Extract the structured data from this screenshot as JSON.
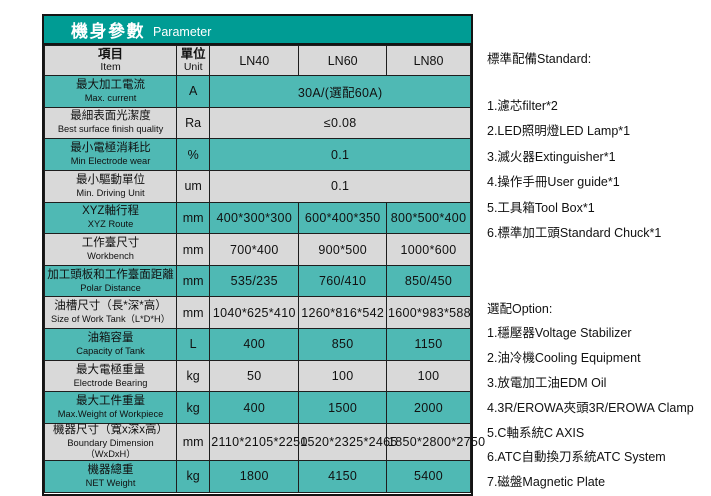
{
  "colors": {
    "title_bar": "#009C94",
    "row_teal": "#4FB9B4",
    "row_gray": "#D9D9D9",
    "border": "#1E1E1E",
    "title_text": "#FFFFFF",
    "body_text": "#111111",
    "page_background": "#FFFFFF"
  },
  "table": {
    "title_zh": "機身參數",
    "title_en": "Parameter",
    "header": {
      "item_zh": "項目",
      "item_en": "Item",
      "unit_zh": "單位",
      "unit_en": "Unit",
      "models": [
        "LN40",
        "LN60",
        "LN80"
      ]
    },
    "rows": [
      {
        "zh": "最大加工電流",
        "en": "Max. current",
        "unit": "A",
        "span": "30A/(選配60A)"
      },
      {
        "zh": "最細表面光潔度",
        "en": "Best surface finish quality",
        "unit": "Ra",
        "span": "≤0.08"
      },
      {
        "zh": "最小電極消耗比",
        "en": "Min Electrode wear",
        "unit": "%",
        "span": "0.1"
      },
      {
        "zh": "最小驅動單位",
        "en": "Min. Driving Unit",
        "unit": "um",
        "span": "0.1"
      },
      {
        "zh": "XYZ軸行程",
        "en": "XYZ Route",
        "unit": "mm",
        "v": [
          "400*300*300",
          "600*400*350",
          "800*500*400"
        ]
      },
      {
        "zh": "工作臺尺寸",
        "en": "Workbench",
        "unit": "mm",
        "v": [
          "700*400",
          "900*500",
          "1000*600"
        ]
      },
      {
        "zh": "加工頭板和工作臺面距離",
        "en": "Polar Distance",
        "unit": "mm",
        "v": [
          "535/235",
          "760/410",
          "850/450"
        ]
      },
      {
        "zh": "油槽尺寸（長*深*高）",
        "en": "Size of Work Tank（L*D*H）",
        "unit": "mm",
        "v": [
          "1040*625*410",
          "1260*816*542",
          "1600*983*588"
        ]
      },
      {
        "zh": "油箱容量",
        "en": "Capacity of Tank",
        "unit": "L",
        "v": [
          "400",
          "850",
          "1150"
        ]
      },
      {
        "zh": "最大電極重量",
        "en": "Electrode Bearing",
        "unit": "kg",
        "v": [
          "50",
          "100",
          "100"
        ]
      },
      {
        "zh": "最大工件重量",
        "en": "Max.Weight of Workpiece",
        "unit": "kg",
        "v": [
          "400",
          "1500",
          "2000"
        ]
      },
      {
        "zh": "機器尺寸（寬x深x高）",
        "en": "Boundary Dimension（WxDxH）",
        "unit": "mm",
        "v": [
          "2110*2105*2250",
          "1520*2325*2465",
          "1850*2800*2750"
        ]
      },
      {
        "zh": "機器總重",
        "en": "NET Weight",
        "unit": "kg",
        "v": [
          "1800",
          "4150",
          "5400"
        ]
      }
    ]
  },
  "standard": {
    "heading": "標準配備Standard:",
    "items": [
      "1.濾芯filter*2",
      "2.LED照明燈LED Lamp*1",
      "3.滅火器Extinguisher*1",
      "4.操作手冊User guide*1",
      "5.工具箱Tool Box*1",
      "6.標準加工頭Standard Chuck*1"
    ]
  },
  "options": {
    "heading": "選配Option:",
    "items": [
      "1.穩壓器Voltage Stabilizer",
      "2.油冷機Cooling Equipment",
      "3.放電加工油EDM Oil",
      "4.3R/EROWA夾頭3R/EROWA Clamp",
      "5.C軸系統C AXIS",
      "6.ATC自動換刀系統ATC System",
      "7.磁盤Magnetic Plate"
    ]
  }
}
